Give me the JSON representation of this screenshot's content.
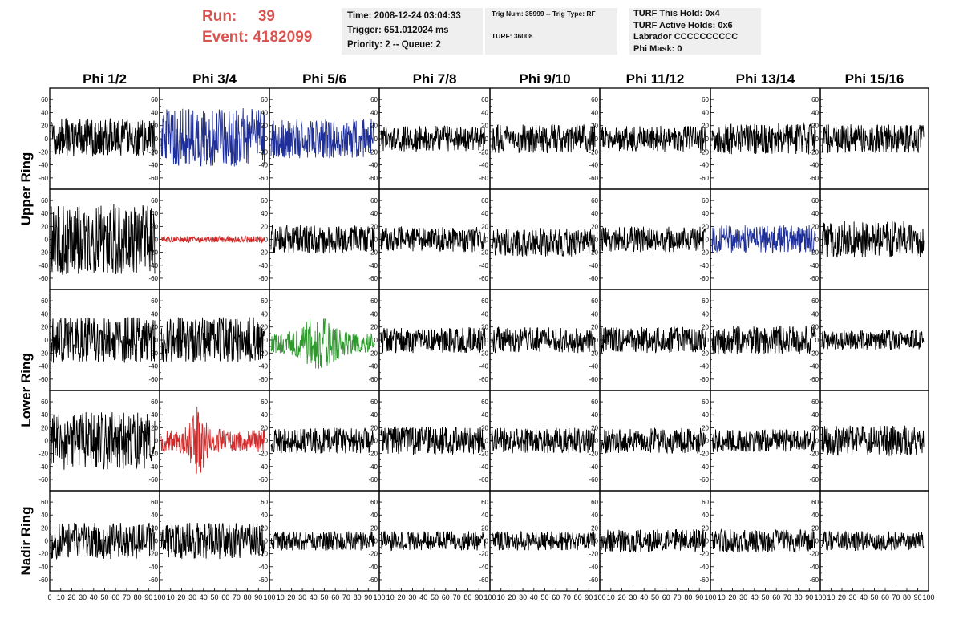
{
  "header": {
    "run_label": "Run:",
    "run_value": "39",
    "event_label": "Event:",
    "event_value": "4182099",
    "time": "Time: 2008-12-24 03:04:33",
    "trigger": "Trigger: 651.012024 ms",
    "priority": "Priority: 2 -- Queue: 2",
    "trig_num": "Trig Num: 35999 -- Trig Type: RF",
    "turf": "TURF: 36008",
    "turf_hold": "TURF This Hold: 0x4",
    "turf_active": "TURF Active Holds: 0x6",
    "labrador": "Labrador CCCCCCCCCC",
    "phi_mask": "Phi Mask: 0"
  },
  "colors": {
    "header_red": "#d9534f",
    "trace_black": "#000000",
    "trace_blue": "#1f2f99",
    "trace_red": "#d22a2a",
    "trace_green": "#2e9a2e",
    "info_bg": "#efefef"
  },
  "chart_data": {
    "type": "line",
    "title": "",
    "columns": [
      "Phi 1/2",
      "Phi 3/4",
      "Phi 5/6",
      "Phi 7/8",
      "Phi 9/10",
      "Phi 11/12",
      "Phi 13/14",
      "Phi 15/16"
    ],
    "ring_labels": [
      {
        "label": "Upper Ring",
        "rows": [
          0,
          1
        ]
      },
      {
        "label": "Lower Ring",
        "rows": [
          2,
          3
        ]
      },
      {
        "label": "Nadir Ring",
        "rows": [
          4,
          4
        ]
      }
    ],
    "ylim": [
      -70,
      70
    ],
    "xlim": [
      0,
      100
    ],
    "y_ticks": [
      -60,
      -40,
      -20,
      0,
      20,
      40,
      60
    ],
    "x_ticks": [
      0,
      10,
      20,
      30,
      40,
      50,
      60,
      70,
      80,
      90,
      100
    ],
    "grid": false,
    "panels": [
      [
        {
          "color": "black",
          "amplitude": 30,
          "offset": 2,
          "style": "noise"
        },
        {
          "color": "blue",
          "amplitude": 45,
          "offset": 2,
          "style": "noise"
        },
        {
          "color": "blue",
          "amplitude": 30,
          "offset": 0,
          "style": "noise"
        },
        {
          "color": "black",
          "amplitude": 20,
          "offset": 0,
          "style": "noise"
        },
        {
          "color": "black",
          "amplitude": 22,
          "offset": 0,
          "style": "noise"
        },
        {
          "color": "black",
          "amplitude": 20,
          "offset": 0,
          "style": "noise"
        },
        {
          "color": "black",
          "amplitude": 24,
          "offset": 0,
          "style": "noise"
        },
        {
          "color": "black",
          "amplitude": 22,
          "offset": 0,
          "style": "noise"
        }
      ],
      [
        {
          "color": "black",
          "amplitude": 55,
          "offset": 0,
          "style": "noise"
        },
        {
          "color": "red",
          "amplitude": 5,
          "offset": 0,
          "style": "noise"
        },
        {
          "color": "black",
          "amplitude": 22,
          "offset": 0,
          "style": "noise"
        },
        {
          "color": "black",
          "amplitude": 20,
          "offset": 0,
          "style": "noise"
        },
        {
          "color": "black",
          "amplitude": 22,
          "offset": -5,
          "style": "noise"
        },
        {
          "color": "black",
          "amplitude": 20,
          "offset": 0,
          "style": "noise"
        },
        {
          "color": "blue",
          "amplitude": 22,
          "offset": 0,
          "style": "noise"
        },
        {
          "color": "black",
          "amplitude": 28,
          "offset": 0,
          "style": "noise"
        }
      ],
      [
        {
          "color": "black",
          "amplitude": 35,
          "offset": 0,
          "style": "noise"
        },
        {
          "color": "black",
          "amplitude": 35,
          "offset": 0,
          "style": "noise"
        },
        {
          "color": "green",
          "amplitude": 40,
          "offset": -5,
          "style": "burst"
        },
        {
          "color": "black",
          "amplitude": 20,
          "offset": 0,
          "style": "noise"
        },
        {
          "color": "black",
          "amplitude": 20,
          "offset": 0,
          "style": "noise"
        },
        {
          "color": "black",
          "amplitude": 20,
          "offset": 0,
          "style": "noise"
        },
        {
          "color": "black",
          "amplitude": 22,
          "offset": 0,
          "style": "noise"
        },
        {
          "color": "black",
          "amplitude": 15,
          "offset": 0,
          "style": "noise"
        }
      ],
      [
        {
          "color": "black",
          "amplitude": 45,
          "offset": 0,
          "style": "noise"
        },
        {
          "color": "red",
          "amplitude": 60,
          "offset": 0,
          "style": "pulse"
        },
        {
          "color": "black",
          "amplitude": 20,
          "offset": 0,
          "style": "noise"
        },
        {
          "color": "black",
          "amplitude": 22,
          "offset": 0,
          "style": "noise"
        },
        {
          "color": "black",
          "amplitude": 20,
          "offset": 0,
          "style": "noise"
        },
        {
          "color": "black",
          "amplitude": 20,
          "offset": 0,
          "style": "noise"
        },
        {
          "color": "black",
          "amplitude": 18,
          "offset": 0,
          "style": "noise"
        },
        {
          "color": "black",
          "amplitude": 24,
          "offset": 0,
          "style": "noise"
        }
      ],
      [
        {
          "color": "black",
          "amplitude": 28,
          "offset": 0,
          "style": "noise"
        },
        {
          "color": "black",
          "amplitude": 28,
          "offset": 0,
          "style": "noise"
        },
        {
          "color": "black",
          "amplitude": 15,
          "offset": 0,
          "style": "noise"
        },
        {
          "color": "black",
          "amplitude": 15,
          "offset": 0,
          "style": "noise"
        },
        {
          "color": "black",
          "amplitude": 15,
          "offset": 0,
          "style": "noise"
        },
        {
          "color": "black",
          "amplitude": 18,
          "offset": 0,
          "style": "noise"
        },
        {
          "color": "black",
          "amplitude": 18,
          "offset": 0,
          "style": "noise"
        },
        {
          "color": "black",
          "amplitude": 15,
          "offset": 0,
          "style": "noise"
        }
      ]
    ]
  }
}
